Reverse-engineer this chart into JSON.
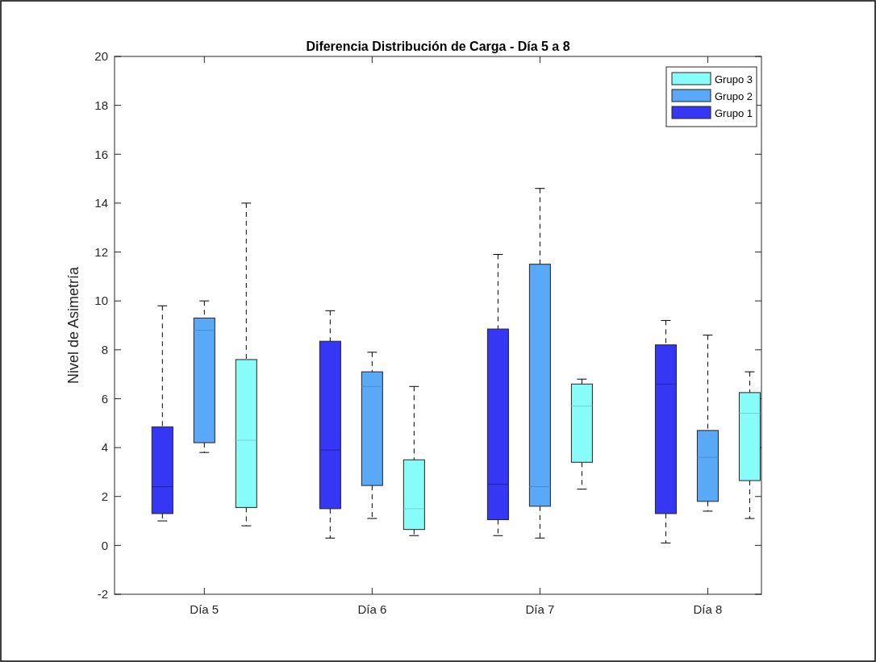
{
  "chart_data": {
    "type": "box",
    "title": "Diferencia Distribución de Carga - Día 5 a 8",
    "ylabel": "Nivel de Asimetría",
    "categories": [
      "Día 5",
      "Día 6",
      "Día 7",
      "Día 8"
    ],
    "ylim": [
      -2,
      20
    ],
    "yticks": [
      -2,
      0,
      2,
      4,
      6,
      8,
      10,
      12,
      14,
      16,
      18,
      20
    ],
    "grid": false,
    "legend": "top right",
    "series": [
      {
        "name": "Grupo 1",
        "color": "#3636f5",
        "boxes": [
          {
            "low": 1.0,
            "q1": 1.3,
            "median": 2.4,
            "q3": 4.85,
            "high": 9.8
          },
          {
            "low": 0.3,
            "q1": 1.5,
            "median": 3.9,
            "q3": 8.35,
            "high": 9.6
          },
          {
            "low": 0.4,
            "q1": 1.05,
            "median": 2.5,
            "q3": 8.85,
            "high": 11.9
          },
          {
            "low": 0.1,
            "q1": 1.3,
            "median": 6.6,
            "q3": 8.2,
            "high": 9.2
          }
        ]
      },
      {
        "name": "Grupo 2",
        "color": "#5aa9f8",
        "boxes": [
          {
            "low": 3.8,
            "q1": 4.2,
            "median": 8.8,
            "q3": 9.3,
            "high": 10.0
          },
          {
            "low": 1.1,
            "q1": 2.45,
            "median": 6.5,
            "q3": 7.1,
            "high": 7.9
          },
          {
            "low": 0.3,
            "q1": 1.6,
            "median": 2.4,
            "q3": 11.5,
            "high": 14.6
          },
          {
            "low": 1.4,
            "q1": 1.8,
            "median": 3.6,
            "q3": 4.7,
            "high": 8.6
          }
        ]
      },
      {
        "name": "Grupo 3",
        "color": "#88fcf8",
        "boxes": [
          {
            "low": 0.8,
            "q1": 1.55,
            "median": 4.3,
            "q3": 7.6,
            "high": 14.0
          },
          {
            "low": 0.4,
            "q1": 0.65,
            "median": 1.5,
            "q3": 3.5,
            "high": 6.5
          },
          {
            "low": 2.3,
            "q1": 3.4,
            "median": 5.7,
            "q3": 6.6,
            "high": 6.8
          },
          {
            "low": 1.1,
            "q1": 2.65,
            "median": 5.4,
            "q3": 6.25,
            "high": 7.1
          }
        ]
      }
    ]
  }
}
